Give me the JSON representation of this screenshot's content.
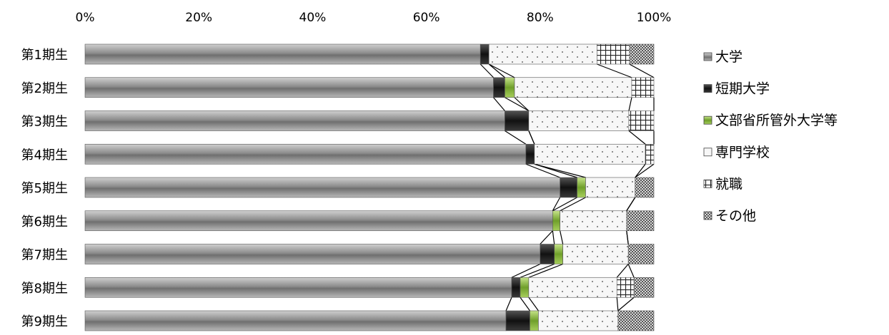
{
  "chart_data": {
    "type": "bar",
    "orientation": "horizontal",
    "stacked": "percent",
    "categories": [
      "第1期生",
      "第2期生",
      "第3期生",
      "第4期生",
      "第5期生",
      "第6期生",
      "第7期生",
      "第8期生",
      "第9期生"
    ],
    "series": [
      {
        "name": "大学",
        "color": "#8a8a8a",
        "pattern": "gradient-gray",
        "values": [
          69.5,
          71.8,
          73.8,
          77.5,
          83.5,
          82.2,
          80.0,
          75.0,
          74.0
        ]
      },
      {
        "name": "短期大学",
        "color": "#222222",
        "pattern": "solid-black",
        "values": [
          1.5,
          2.0,
          4.2,
          1.5,
          3.0,
          0.0,
          2.5,
          1.5,
          4.2
        ]
      },
      {
        "name": "文部省所管外大学等",
        "color": "#7fb33f",
        "pattern": "solid-green",
        "values": [
          0.0,
          1.7,
          0.0,
          0.0,
          1.5,
          1.3,
          1.5,
          1.5,
          1.5
        ]
      },
      {
        "name": "専門学校",
        "color": "#f4f4f4",
        "pattern": "dots",
        "values": [
          19.0,
          20.6,
          17.6,
          19.5,
          8.7,
          11.7,
          11.5,
          15.5,
          14.0
        ]
      },
      {
        "name": "就職",
        "color": "#ffffff",
        "pattern": "grid",
        "values": [
          5.7,
          3.9,
          4.4,
          1.5,
          0.0,
          0.0,
          0.0,
          3.0,
          0.0
        ]
      },
      {
        "name": "その他",
        "color": "#999999",
        "pattern": "checker",
        "values": [
          4.3,
          0.0,
          0.0,
          0.0,
          3.3,
          4.8,
          4.5,
          3.5,
          6.3
        ]
      }
    ],
    "xaxis": {
      "ticks": [
        "0%",
        "20%",
        "40%",
        "60%",
        "80%",
        "100%"
      ],
      "position": "top",
      "range": [
        0,
        100
      ]
    },
    "series_lines": true,
    "legend": {
      "position": "right"
    },
    "grid": false,
    "title": "",
    "xlabel": "",
    "ylabel": ""
  }
}
